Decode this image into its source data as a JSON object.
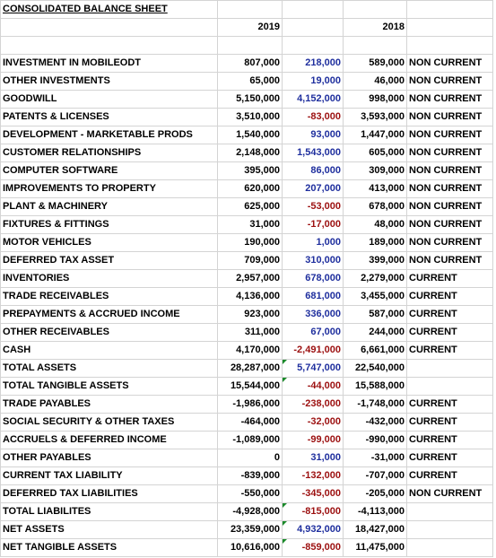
{
  "title": "CONSOLIDATED BALANCE SHEET",
  "years": {
    "current": "2019",
    "prior": "2018"
  },
  "colors": {
    "positive_change": "#1f2f9e",
    "negative_change": "#9c1010",
    "error_marker": "#1a8a2a"
  },
  "rows": [
    {
      "label": "INVESTMENT IN MOBILEODT",
      "y2019": "807,000",
      "change": "218,000",
      "y2018": "589,000",
      "classification": "NON CURRENT",
      "negative": false,
      "marker": false
    },
    {
      "label": "OTHER INVESTMENTS",
      "y2019": "65,000",
      "change": "19,000",
      "y2018": "46,000",
      "classification": "NON CURRENT",
      "negative": false,
      "marker": false
    },
    {
      "label": "GOODWILL",
      "y2019": "5,150,000",
      "change": "4,152,000",
      "y2018": "998,000",
      "classification": "NON CURRENT",
      "negative": false,
      "marker": false
    },
    {
      "label": "PATENTS & LICENSES",
      "y2019": "3,510,000",
      "change": "-83,000",
      "y2018": "3,593,000",
      "classification": "NON CURRENT",
      "negative": true,
      "marker": false
    },
    {
      "label": "DEVELOPMENT - MARKETABLE PRODS",
      "y2019": "1,540,000",
      "change": "93,000",
      "y2018": "1,447,000",
      "classification": "NON CURRENT",
      "negative": false,
      "marker": false
    },
    {
      "label": "CUSTOMER RELATIONSHIPS",
      "y2019": "2,148,000",
      "change": "1,543,000",
      "y2018": "605,000",
      "classification": "NON CURRENT",
      "negative": false,
      "marker": false
    },
    {
      "label": "COMPUTER SOFTWARE",
      "y2019": "395,000",
      "change": "86,000",
      "y2018": "309,000",
      "classification": "NON CURRENT",
      "negative": false,
      "marker": false
    },
    {
      "label": "IMPROVEMENTS TO  PROPERTY",
      "y2019": "620,000",
      "change": "207,000",
      "y2018": "413,000",
      "classification": "NON CURRENT",
      "negative": false,
      "marker": false
    },
    {
      "label": "PLANT & MACHINERY",
      "y2019": "625,000",
      "change": "-53,000",
      "y2018": "678,000",
      "classification": "NON CURRENT",
      "negative": true,
      "marker": false
    },
    {
      "label": "FIXTURES & FITTINGS",
      "y2019": "31,000",
      "change": "-17,000",
      "y2018": "48,000",
      "classification": "NON CURRENT",
      "negative": true,
      "marker": false
    },
    {
      "label": "MOTOR VEHICLES",
      "y2019": "190,000",
      "change": "1,000",
      "y2018": "189,000",
      "classification": "NON CURRENT",
      "negative": false,
      "marker": false
    },
    {
      "label": "DEFERRED TAX ASSET",
      "y2019": "709,000",
      "change": "310,000",
      "y2018": "399,000",
      "classification": "NON CURRENT",
      "negative": false,
      "marker": false
    },
    {
      "label": "INVENTORIES",
      "y2019": "2,957,000",
      "change": "678,000",
      "y2018": "2,279,000",
      "classification": "CURRENT",
      "negative": false,
      "marker": false
    },
    {
      "label": "TRADE RECEIVABLES",
      "y2019": "4,136,000",
      "change": "681,000",
      "y2018": "3,455,000",
      "classification": "CURRENT",
      "negative": false,
      "marker": false
    },
    {
      "label": "PREPAYMENTS & ACCRUED INCOME",
      "y2019": "923,000",
      "change": "336,000",
      "y2018": "587,000",
      "classification": "CURRENT",
      "negative": false,
      "marker": false
    },
    {
      "label": "OTHER RECEIVABLES",
      "y2019": "311,000",
      "change": "67,000",
      "y2018": "244,000",
      "classification": "CURRENT",
      "negative": false,
      "marker": false
    },
    {
      "label": "CASH",
      "y2019": "4,170,000",
      "change": "-2,491,000",
      "y2018": "6,661,000",
      "classification": "CURRENT",
      "negative": true,
      "marker": false
    },
    {
      "label": "TOTAL ASSETS",
      "y2019": "28,287,000",
      "change": "5,747,000",
      "y2018": "22,540,000",
      "classification": "",
      "negative": false,
      "marker": true
    },
    {
      "label": "TOTAL TANGIBLE ASSETS",
      "y2019": "15,544,000",
      "change": "-44,000",
      "y2018": "15,588,000",
      "classification": "",
      "negative": true,
      "marker": true
    },
    {
      "label": "TRADE PAYABLES",
      "y2019": "-1,986,000",
      "change": "-238,000",
      "y2018": "-1,748,000",
      "classification": "CURRENT",
      "negative": true,
      "marker": false
    },
    {
      "label": "SOCIAL SECURITY & OTHER TAXES",
      "y2019": "-464,000",
      "change": "-32,000",
      "y2018": "-432,000",
      "classification": "CURRENT",
      "negative": true,
      "marker": false
    },
    {
      "label": "ACCRUELS & DEFERRED INCOME",
      "y2019": "-1,089,000",
      "change": "-99,000",
      "y2018": "-990,000",
      "classification": "CURRENT",
      "negative": true,
      "marker": false
    },
    {
      "label": "OTHER PAYABLES",
      "y2019": "0",
      "change": "31,000",
      "y2018": "-31,000",
      "classification": "CURRENT",
      "negative": false,
      "marker": false
    },
    {
      "label": "CURRENT TAX LIABILITY",
      "y2019": "-839,000",
      "change": "-132,000",
      "y2018": "-707,000",
      "classification": "CURRENT",
      "negative": true,
      "marker": false
    },
    {
      "label": "DEFERRED TAX LIABILITIES",
      "y2019": "-550,000",
      "change": "-345,000",
      "y2018": "-205,000",
      "classification": "NON CURRENT",
      "negative": true,
      "marker": false
    },
    {
      "label": "TOTAL LIABILITES",
      "y2019": "-4,928,000",
      "change": "-815,000",
      "y2018": "-4,113,000",
      "classification": "",
      "negative": true,
      "marker": true
    },
    {
      "label": "NET ASSETS",
      "y2019": "23,359,000",
      "change": "4,932,000",
      "y2018": "18,427,000",
      "classification": "",
      "negative": false,
      "marker": true
    },
    {
      "label": "NET TANGIBLE ASSETS",
      "y2019": "10,616,000",
      "change": "-859,000",
      "y2018": "11,475,000",
      "classification": "",
      "negative": true,
      "marker": true
    }
  ]
}
